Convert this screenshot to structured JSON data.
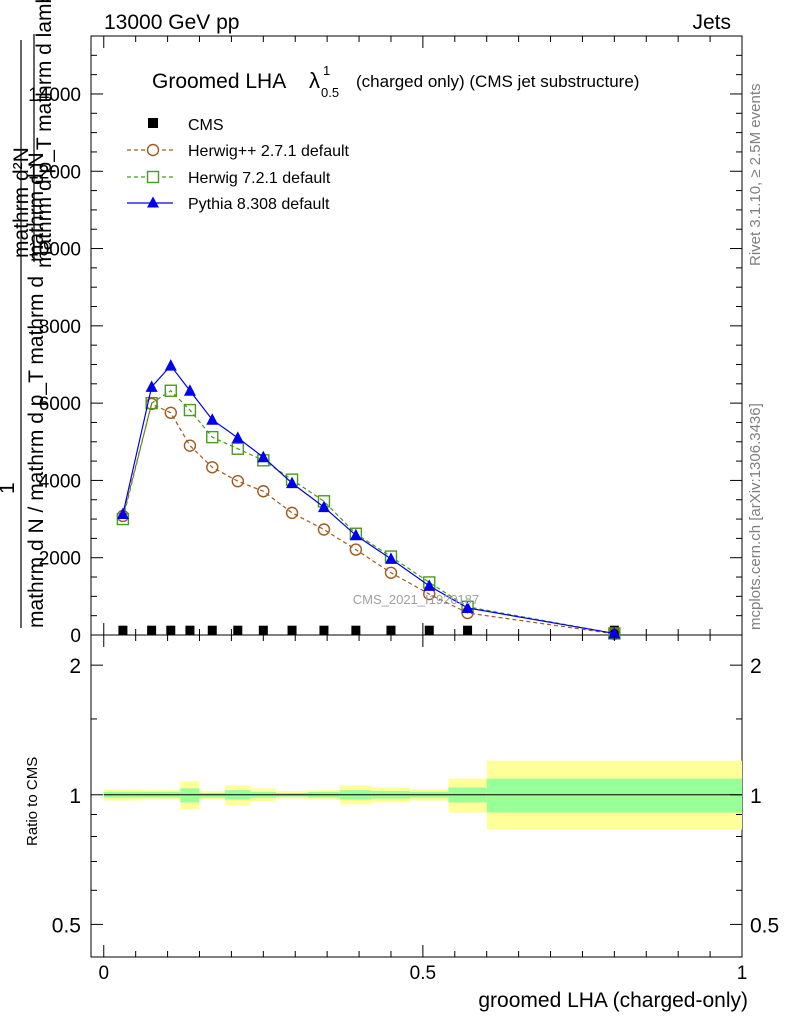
{
  "header": {
    "left": "13000 GeV pp",
    "right": "Jets"
  },
  "side_text": {
    "rivet": "Rivet 3.1.10, ≥ 2.5M events",
    "mcplots": "mcplots.cern.ch [arXiv:1306.3436]"
  },
  "chart_data": [
    {
      "type": "line",
      "title_main": "Groomed LHA",
      "title_lambda": "λ",
      "title_sup": "1",
      "title_sub": "0.5",
      "title_rest": "(charged only) (CMS jet substructure)",
      "ylabel_top_num": "mathrm d²N",
      "ylabel_top_den": "mathrm d p_T mathrm d lambda",
      "ylabel_one": "1",
      "ylabel_bottom_num": "mathrm d N / mathrm d p_T mathrm d",
      "ylabel_bottom_den": "mathrm d N",
      "ylim": [
        0,
        15500
      ],
      "xlim": [
        -0.02,
        1.0
      ],
      "yticks": [
        "0",
        "2000",
        "4000",
        "6000",
        "8000",
        "10000",
        "12000",
        "14000"
      ],
      "watermark": "CMS_2021_I1920187",
      "x": [
        0.03,
        0.075,
        0.105,
        0.135,
        0.17,
        0.21,
        0.25,
        0.295,
        0.345,
        0.395,
        0.45,
        0.51,
        0.57,
        0.8
      ],
      "series": [
        {
          "name": "CMS",
          "color": "#000000",
          "marker": "square-filled",
          "values": [
            8,
            8,
            8,
            8,
            8,
            8,
            8,
            8,
            8,
            8,
            8,
            8,
            8,
            8
          ]
        },
        {
          "name": "Herwig++ 2.7.1 default",
          "color": "#a05a1e",
          "marker": "circle-open",
          "line": "dashed",
          "values": [
            3080,
            5980,
            5750,
            4900,
            4340,
            3980,
            3720,
            3160,
            2730,
            2210,
            1610,
            1060,
            570,
            30
          ]
        },
        {
          "name": "Herwig 7.2.1 default",
          "color": "#4a9a1e",
          "marker": "square-open",
          "line": "dashed",
          "values": [
            3000,
            6000,
            6320,
            5820,
            5120,
            4820,
            4520,
            4020,
            3460,
            2620,
            2030,
            1360,
            730,
            40
          ]
        },
        {
          "name": "Pythia 8.308 default",
          "color": "#0000ee",
          "marker": "triangle-filled",
          "line": "solid",
          "values": [
            3130,
            6420,
            6970,
            6320,
            5570,
            5100,
            4600,
            3930,
            3310,
            2580,
            1970,
            1270,
            700,
            40
          ]
        }
      ]
    },
    {
      "type": "area",
      "ylabel": "Ratio to CMS",
      "xlabel": "groomed LHA (charged-only)",
      "xlim": [
        -0.02,
        1.0
      ],
      "ylim": [
        0.42,
        2.35
      ],
      "log_y": true,
      "yticks": [
        "0.5",
        "1",
        "2"
      ],
      "xticks": [
        "0",
        "0.5",
        "1"
      ],
      "bin_edges": [
        0,
        0.06,
        0.09,
        0.12,
        0.15,
        0.19,
        0.23,
        0.27,
        0.32,
        0.37,
        0.42,
        0.48,
        0.54,
        0.6,
        1.0
      ],
      "band_inner": {
        "color": "#99ff99",
        "low": [
          0.985,
          0.985,
          0.985,
          0.96,
          0.985,
          0.975,
          0.985,
          0.99,
          0.985,
          0.975,
          0.98,
          0.985,
          0.96,
          0.91
        ],
        "high": [
          1.015,
          1.015,
          1.015,
          1.035,
          1.01,
          1.025,
          1.015,
          1.01,
          1.015,
          1.025,
          1.02,
          1.015,
          1.04,
          1.09
        ]
      },
      "band_outer": {
        "color": "#ffff99",
        "low": [
          0.97,
          0.975,
          0.975,
          0.925,
          0.975,
          0.945,
          0.965,
          0.98,
          0.975,
          0.95,
          0.96,
          0.97,
          0.91,
          0.83
        ],
        "high": [
          1.03,
          1.025,
          1.025,
          1.075,
          1.02,
          1.05,
          1.035,
          1.02,
          1.025,
          1.05,
          1.04,
          1.03,
          1.09,
          1.2
        ]
      }
    }
  ]
}
